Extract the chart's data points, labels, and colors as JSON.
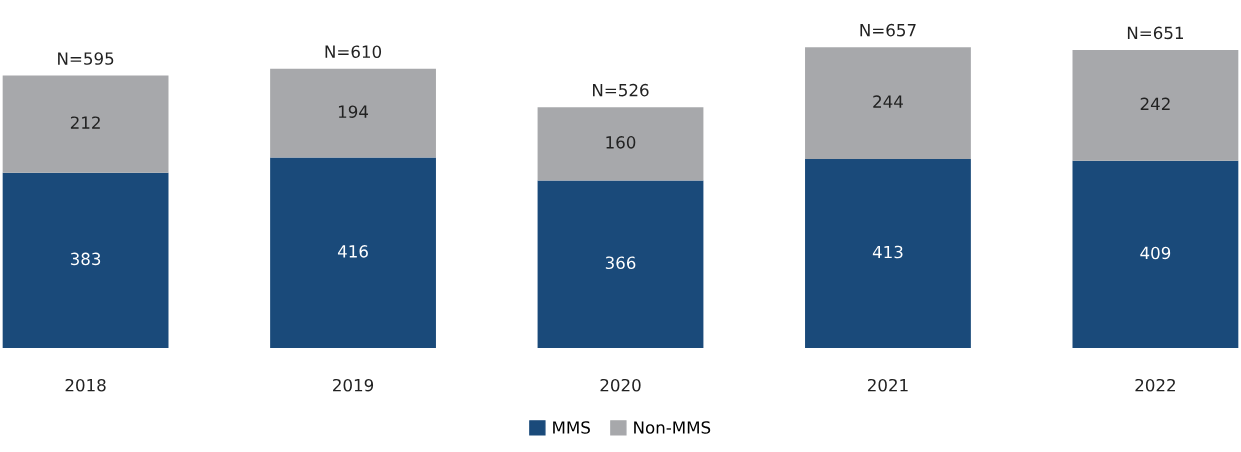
{
  "chart_data": {
    "type": "bar",
    "stacked": true,
    "categories": [
      "2018",
      "2019",
      "2020",
      "2021",
      "2022"
    ],
    "series": [
      {
        "name": "MMS",
        "color": "#1a4a7a",
        "values": [
          383,
          416,
          366,
          413,
          409
        ]
      },
      {
        "name": "Non-MMS",
        "color": "#a7a8ab",
        "values": [
          212,
          194,
          160,
          244,
          242
        ]
      }
    ],
    "data_labels": true,
    "totals": [
      "N=595",
      "N=610",
      "N=526",
      "N=657",
      "N=651"
    ],
    "legend": "bottom",
    "grid": false,
    "tick_labels": "x"
  }
}
